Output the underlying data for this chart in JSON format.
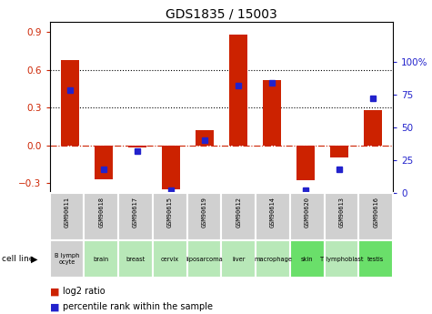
{
  "title": "GDS1835 / 15003",
  "samples": [
    "GSM90611",
    "GSM90618",
    "GSM90617",
    "GSM90615",
    "GSM90619",
    "GSM90612",
    "GSM90614",
    "GSM90620",
    "GSM90613",
    "GSM90616"
  ],
  "cell_lines": [
    "B lymph\nocyte",
    "brain",
    "breast",
    "cervix",
    "liposarcoma",
    "liver",
    "macrophage",
    "skin",
    "T lymphoblast",
    "testis"
  ],
  "log2_ratio": [
    0.68,
    -0.27,
    -0.02,
    -0.35,
    0.12,
    0.88,
    0.52,
    -0.28,
    -0.1,
    0.28
  ],
  "percentile_rank": [
    78,
    18,
    32,
    2,
    40,
    82,
    84,
    2,
    18,
    72
  ],
  "ylim_left": [
    -0.38,
    0.98
  ],
  "ylim_right": [
    0,
    130
  ],
  "yticks_left": [
    -0.3,
    0.0,
    0.3,
    0.6,
    0.9
  ],
  "yticks_right": [
    0,
    25,
    50,
    75,
    100
  ],
  "bar_color": "#cc2200",
  "dot_color": "#2222cc",
  "bar_width": 0.55,
  "dotted_lines": [
    0.3,
    0.6
  ],
  "title_fontsize": 10,
  "cell_colors": [
    "#d0d0d0",
    "#b8e8b8",
    "#b8e8b8",
    "#b8e8b8",
    "#b8e8b8",
    "#b8e8b8",
    "#b8e8b8",
    "#6adf6a",
    "#b8e8b8",
    "#6adf6a"
  ],
  "sample_box_color": "#d0d0d0"
}
